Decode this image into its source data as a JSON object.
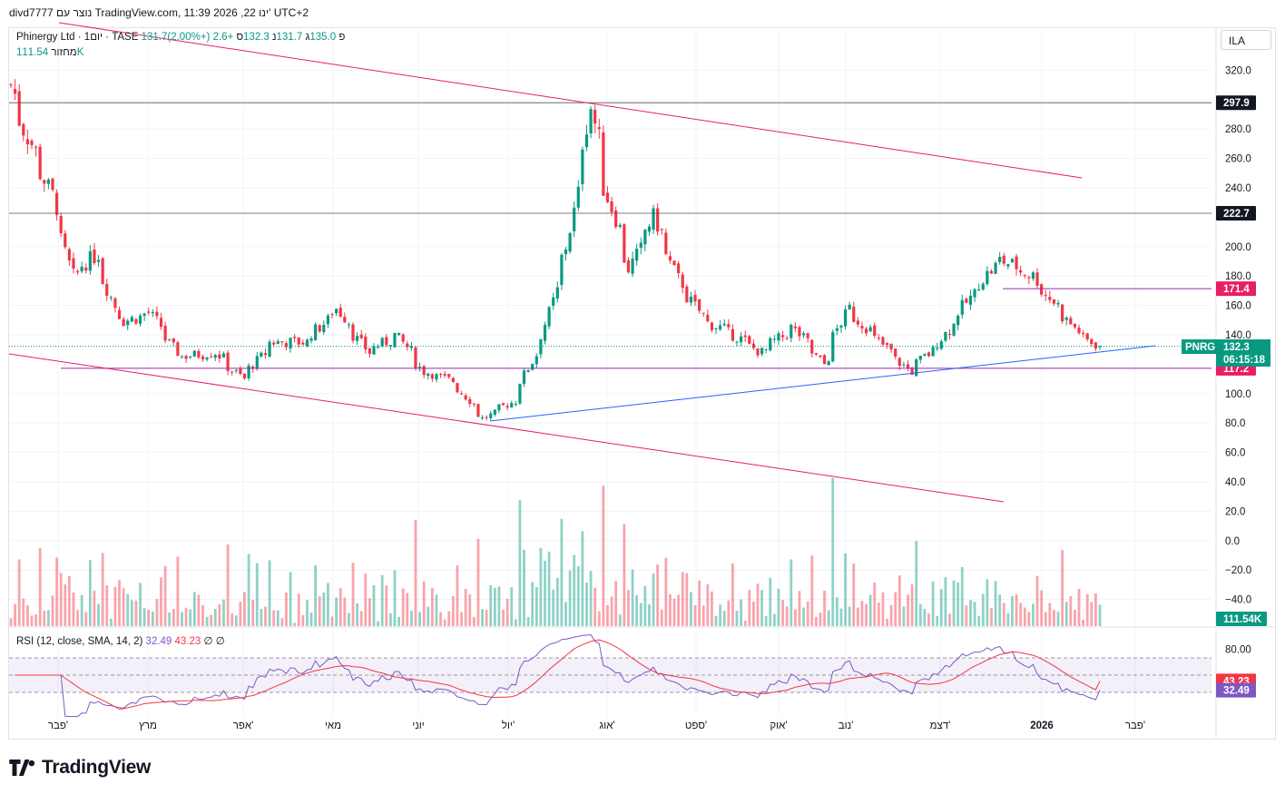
{
  "header": {
    "published_by": "divd7777 נוצר עם TradingView.com, 11:39 2026 ,22 ינו' UTC+2"
  },
  "currency_button": "ILA",
  "legend": {
    "symbol": "Phinergy Ltd · 1יום · TASE",
    "open_label": "פ",
    "open": "131.7",
    "high_label": "ג",
    "high": "135.0",
    "low_label": "נ",
    "low": "131.7",
    "close_label": "ס",
    "close": "132.3",
    "change": "+2.6 (+2.00%)"
  },
  "volume_legend": {
    "label": "מחזור",
    "value": "111.54K"
  },
  "rsi_legend": {
    "label": "RSI (12, close, SMA, 14, 2)",
    "rsi": "32.49",
    "sma": "43.23",
    "extra1": "∅",
    "extra2": "∅"
  },
  "colors": {
    "up": "#089981",
    "down": "#f23645",
    "pink_line": "#e91e63",
    "blue_line": "#2962ff",
    "rsi_line": "#7e57c2",
    "rsi_ma": "#f23645",
    "rsi_band": "#7e57c2"
  },
  "price_axis": {
    "ticks": [
      "320.0",
      "280.0",
      "260.0",
      "240.0",
      "200.0",
      "180.0",
      "160.0",
      "140.0",
      "100.0",
      "80.0",
      "60.0",
      "40.0",
      "20.0",
      "0.0",
      "−20.0",
      "−40.0"
    ]
  },
  "rsi_axis": {
    "ticks": [
      "80.00"
    ]
  },
  "time_axis": {
    "labels": [
      "פבר'",
      "מרץ",
      "אפר'",
      "מאי",
      "יוני",
      "יול'",
      "אוג'",
      "ספט'",
      "אוק'",
      "נוב'",
      "דצמ'",
      "2026",
      "פבר'"
    ]
  },
  "price_tags": {
    "level_297": "297.9",
    "level_222": "222.7",
    "level_171": "171.4",
    "symbol_tag": "PNRG",
    "last_price": "132.3",
    "countdown": "06:15:18",
    "level_117": "117.2",
    "volume": "111.54K",
    "rsi_ma": "43.23",
    "rsi": "32.49"
  },
  "chart_data": {
    "type": "candlestick",
    "title": "Phinergy Ltd · 1יום · TASE",
    "ylabel": "ILA",
    "ylim": [
      -45,
      330
    ],
    "horizontal_levels": [
      297.9,
      222.7,
      171.4,
      117.2
    ],
    "last_close": 132.3,
    "rsi_last": 32.49,
    "rsi_ma_last": 43.23,
    "rsi_bands": [
      70,
      30
    ],
    "close_path": [
      {
        "x": "2025-01-22",
        "y": 310
      },
      {
        "x": "2025-01-27",
        "y": 280
      },
      {
        "x": "2025-02-05",
        "y": 235
      },
      {
        "x": "2025-02-12",
        "y": 180
      },
      {
        "x": "2025-02-20",
        "y": 195
      },
      {
        "x": "2025-02-28",
        "y": 148
      },
      {
        "x": "2025-03-10",
        "y": 155
      },
      {
        "x": "2025-03-20",
        "y": 125
      },
      {
        "x": "2025-04-01",
        "y": 128
      },
      {
        "x": "2025-04-10",
        "y": 110
      },
      {
        "x": "2025-04-20",
        "y": 135
      },
      {
        "x": "2025-05-01",
        "y": 135
      },
      {
        "x": "2025-05-12",
        "y": 158
      },
      {
        "x": "2025-05-22",
        "y": 128
      },
      {
        "x": "2025-06-01",
        "y": 140
      },
      {
        "x": "2025-06-10",
        "y": 115
      },
      {
        "x": "2025-06-20",
        "y": 108
      },
      {
        "x": "2025-06-30",
        "y": 83
      },
      {
        "x": "2025-07-10",
        "y": 95
      },
      {
        "x": "2025-07-20",
        "y": 140
      },
      {
        "x": "2025-07-28",
        "y": 200
      },
      {
        "x": "2025-08-05",
        "y": 295
      },
      {
        "x": "2025-08-10",
        "y": 240
      },
      {
        "x": "2025-08-18",
        "y": 185
      },
      {
        "x": "2025-08-26",
        "y": 220
      },
      {
        "x": "2025-09-03",
        "y": 178
      },
      {
        "x": "2025-09-12",
        "y": 150
      },
      {
        "x": "2025-09-22",
        "y": 140
      },
      {
        "x": "2025-10-01",
        "y": 128
      },
      {
        "x": "2025-10-12",
        "y": 145
      },
      {
        "x": "2025-10-22",
        "y": 120
      },
      {
        "x": "2025-10-30",
        "y": 158
      },
      {
        "x": "2025-11-10",
        "y": 135
      },
      {
        "x": "2025-11-20",
        "y": 115
      },
      {
        "x": "2025-11-30",
        "y": 135
      },
      {
        "x": "2025-12-10",
        "y": 165
      },
      {
        "x": "2025-12-20",
        "y": 192
      },
      {
        "x": "2025-12-31",
        "y": 180
      },
      {
        "x": "2026-01-08",
        "y": 160
      },
      {
        "x": "2026-01-16",
        "y": 140
      },
      {
        "x": "2026-01-22",
        "y": 132.3
      }
    ]
  }
}
